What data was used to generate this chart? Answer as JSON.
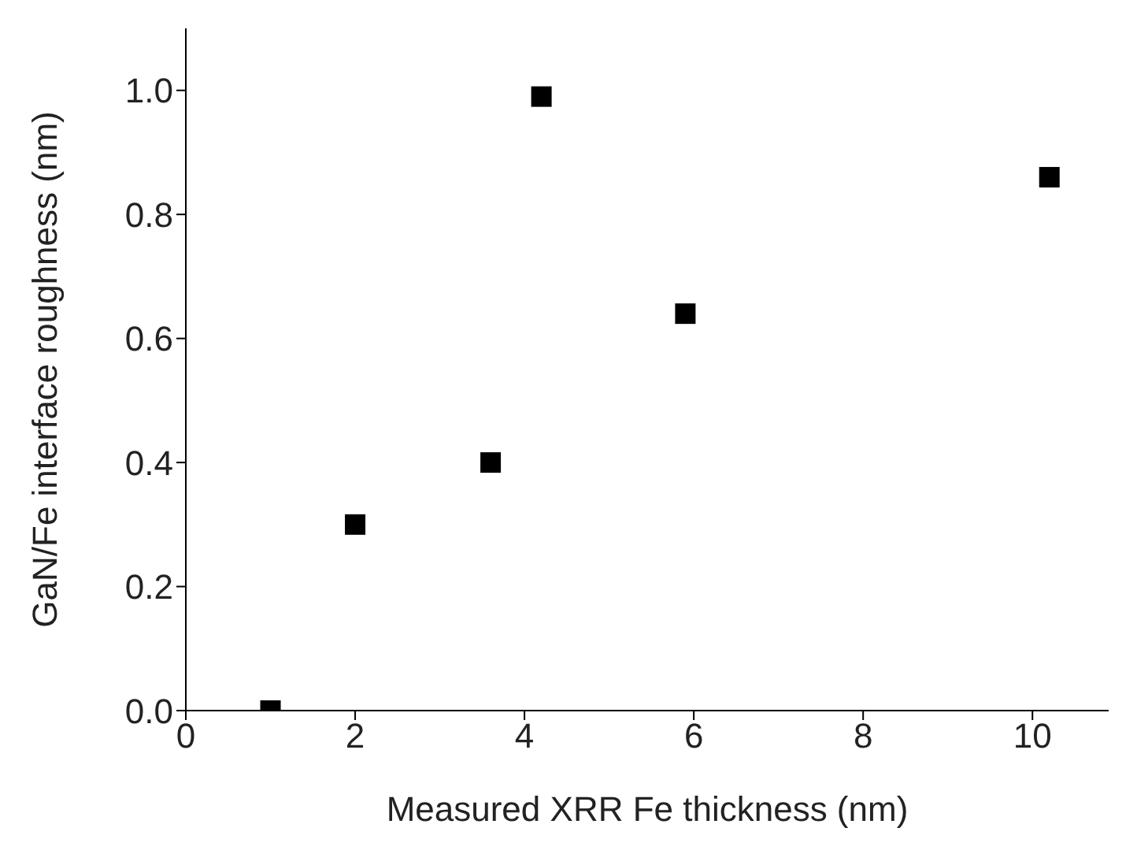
{
  "chart_data": {
    "type": "scatter",
    "xlabel": "Measured XRR Fe thickness (nm)",
    "ylabel": "GaN/Fe interface roughness (nm)",
    "x": [
      1,
      2,
      3.6,
      4.2,
      5.9,
      10.2
    ],
    "values": [
      0,
      0.3,
      0.4,
      0.99,
      0.64,
      0.86
    ],
    "color": "#000000",
    "marker": "square",
    "xlim": [
      0,
      10.9
    ],
    "xticks": [
      0,
      2,
      4,
      6,
      8,
      10
    ],
    "ylim": [
      0,
      1.1
    ],
    "yticks": [
      {
        "value": 0,
        "label": "0.0"
      },
      {
        "value": 0.2,
        "label": "0.2"
      },
      {
        "value": 0.4,
        "label": "0.4"
      },
      {
        "value": 0.6,
        "label": "0.6"
      },
      {
        "value": 0.8,
        "label": "0.8"
      },
      {
        "value": 1,
        "label": "1.0"
      }
    ],
    "grid": false
  }
}
